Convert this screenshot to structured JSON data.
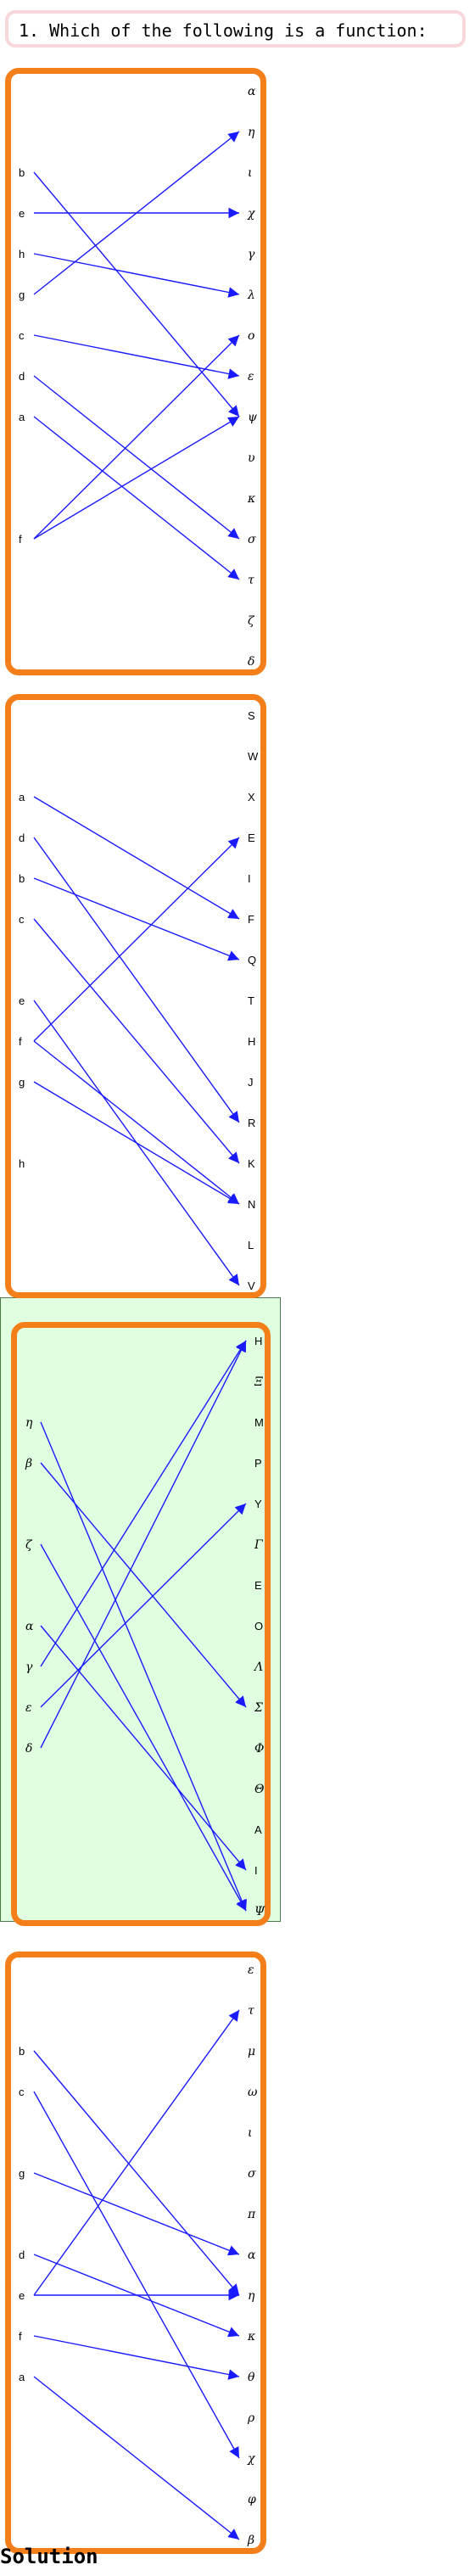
{
  "question": {
    "text": "1. Which of the following is a function:"
  },
  "options": [
    {
      "id": "option-1",
      "domain": [
        "b",
        "e",
        "h",
        "g",
        "c",
        "d",
        "a",
        "",
        "",
        "f"
      ],
      "codomain": [
        "α",
        "η",
        "ι",
        "χ",
        "γ",
        "λ",
        "ο",
        "ε",
        "ψ",
        "υ",
        "κ",
        "σ",
        "τ",
        "ζ",
        "δ"
      ],
      "mappings": [
        [
          "b",
          "ψ"
        ],
        [
          "e",
          "χ"
        ],
        [
          "h",
          "λ"
        ],
        [
          "g",
          "η"
        ],
        [
          "c",
          "ε"
        ],
        [
          "d",
          "σ"
        ],
        [
          "a",
          "τ"
        ],
        [
          "f",
          "ο"
        ],
        [
          "f",
          "ψ"
        ]
      ]
    },
    {
      "id": "option-2",
      "domain": [
        "a",
        "d",
        "b",
        "c",
        "",
        "e",
        "f",
        "g",
        "",
        "h"
      ],
      "codomain": [
        "S",
        "W",
        "X",
        "E",
        "I",
        "F",
        "Q",
        "T",
        "H",
        "J",
        "R",
        "K",
        "N",
        "L",
        "V"
      ],
      "mappings": [
        [
          "a",
          "F"
        ],
        [
          "d",
          "R"
        ],
        [
          "b",
          "Q"
        ],
        [
          "c",
          "K"
        ],
        [
          "e",
          "V"
        ],
        [
          "f",
          "E"
        ],
        [
          "f",
          "N"
        ],
        [
          "g",
          "N"
        ]
      ]
    },
    {
      "id": "option-3",
      "selected": true,
      "domain": [
        "η",
        "β",
        "",
        "ζ",
        "",
        "α",
        "γ",
        "ε",
        "δ"
      ],
      "codomain": [
        "H",
        "Ξ",
        "M",
        "P",
        "Y",
        "Γ",
        "E",
        "O",
        "Λ",
        "Σ",
        "Φ",
        "Θ",
        "A",
        "I",
        "Ψ"
      ],
      "mappings": [
        [
          "η",
          "Ψ"
        ],
        [
          "β",
          "Σ"
        ],
        [
          "ζ",
          "Ψ"
        ],
        [
          "α",
          "I"
        ],
        [
          "γ",
          "H"
        ],
        [
          "ε",
          "Y"
        ],
        [
          "δ",
          "H"
        ]
      ]
    },
    {
      "id": "option-4",
      "domain": [
        "b",
        "c",
        "",
        "g",
        "",
        "d",
        "e",
        "f",
        "a"
      ],
      "codomain": [
        "ε",
        "τ",
        "μ",
        "ω",
        "ι",
        "σ",
        "π",
        "α",
        "η",
        "κ",
        "θ",
        "ρ",
        "χ",
        "φ",
        "β"
      ],
      "mappings": [
        [
          "b",
          "η"
        ],
        [
          "c",
          "χ"
        ],
        [
          "g",
          "α"
        ],
        [
          "d",
          "κ"
        ],
        [
          "e",
          "τ"
        ],
        [
          "e",
          "η"
        ],
        [
          "f",
          "θ"
        ],
        [
          "a",
          "β"
        ]
      ]
    }
  ],
  "solution": {
    "label": "Solution"
  }
}
